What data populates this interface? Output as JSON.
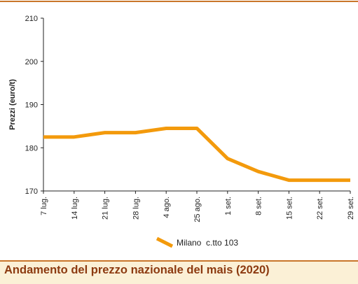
{
  "chart_data": {
    "type": "line",
    "title": "Andamento del prezzo nazionale del mais (2020)",
    "xlabel": "",
    "ylabel": "Prezzi (euro/t)",
    "categories": [
      "7 lug.",
      "14 lug.",
      "21 lug.",
      "28 lug.",
      "4 ago.",
      "25 ago.",
      "1 set.",
      "8 set.",
      "15 set.",
      "22 set.",
      "29 set."
    ],
    "series": [
      {
        "name": "Milano  c.tto 103",
        "color": "#f39a0c",
        "values": [
          182.5,
          182.5,
          183.5,
          183.5,
          184.5,
          184.5,
          177.5,
          174.5,
          172.5,
          172.5,
          172.5
        ]
      }
    ],
    "ylim": [
      170,
      210
    ],
    "yticks": [
      170,
      180,
      190,
      200,
      210
    ],
    "grid": false,
    "legend": "bottom-center"
  }
}
